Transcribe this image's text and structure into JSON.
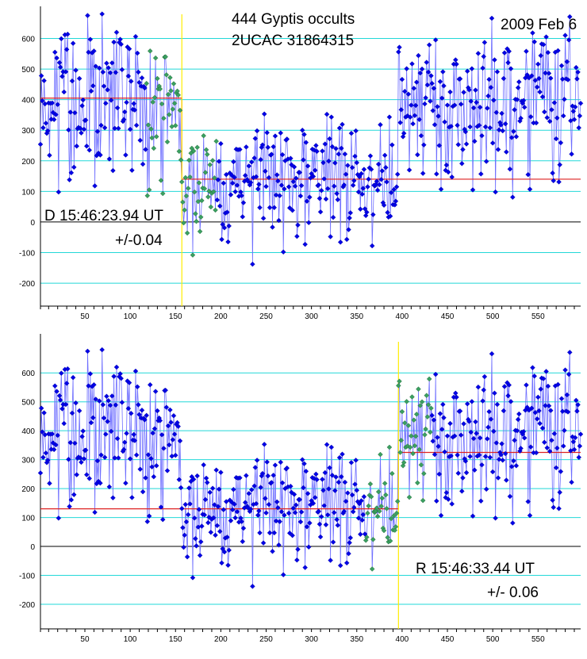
{
  "figure": {
    "title_line1": "444 Gyptis occults",
    "title_line2": "2UCAC 31864315",
    "date": "2009 Feb 6"
  },
  "colors": {
    "gridline": "#22d8d8",
    "data_line": "#6e6eff",
    "data_point": "#0000e6",
    "event_point": "#3aa060",
    "fit_line": "#dd2222",
    "event_marker": "#ffee00",
    "axis": "#000000"
  },
  "chart_data": [
    {
      "type": "scatter",
      "panel": "disappearance",
      "annotation_line1": "D 15:46:23.94 UT",
      "annotation_line2": "+/-0.04",
      "event_frame": 157,
      "event_window": [
        118,
        195
      ],
      "fit": {
        "baseline": 405,
        "occulted": 140
      },
      "series_profile": {
        "baseline_mean": 390,
        "occulted_mean": 140,
        "occult_start": 157,
        "occult_end": 395
      },
      "xlim": [
        1,
        597
      ],
      "ylim": [
        -275,
        705
      ],
      "x_ticks": [
        50,
        100,
        150,
        200,
        250,
        300,
        350,
        400,
        450,
        500,
        550
      ],
      "y_ticks": [
        -200,
        -100,
        0,
        100,
        200,
        300,
        400,
        500,
        600
      ],
      "grid": true
    },
    {
      "type": "scatter",
      "panel": "reappearance",
      "annotation_line1": "R 15:46:33.44 UT",
      "annotation_line2": "+/- 0.06",
      "event_frame": 396,
      "event_window": [
        360,
        432
      ],
      "fit": {
        "baseline": 325,
        "occulted": 130
      },
      "series_profile": {
        "baseline_mean": 390,
        "occulted_mean": 140,
        "occult_start": 157,
        "occult_end": 395
      },
      "xlim": [
        1,
        597
      ],
      "ylim": [
        -285,
        735
      ],
      "x_ticks": [
        50,
        100,
        150,
        200,
        250,
        300,
        350,
        400,
        450,
        500,
        550
      ],
      "y_ticks": [
        -200,
        -100,
        0,
        100,
        200,
        300,
        400,
        500,
        600
      ],
      "grid": true
    }
  ]
}
